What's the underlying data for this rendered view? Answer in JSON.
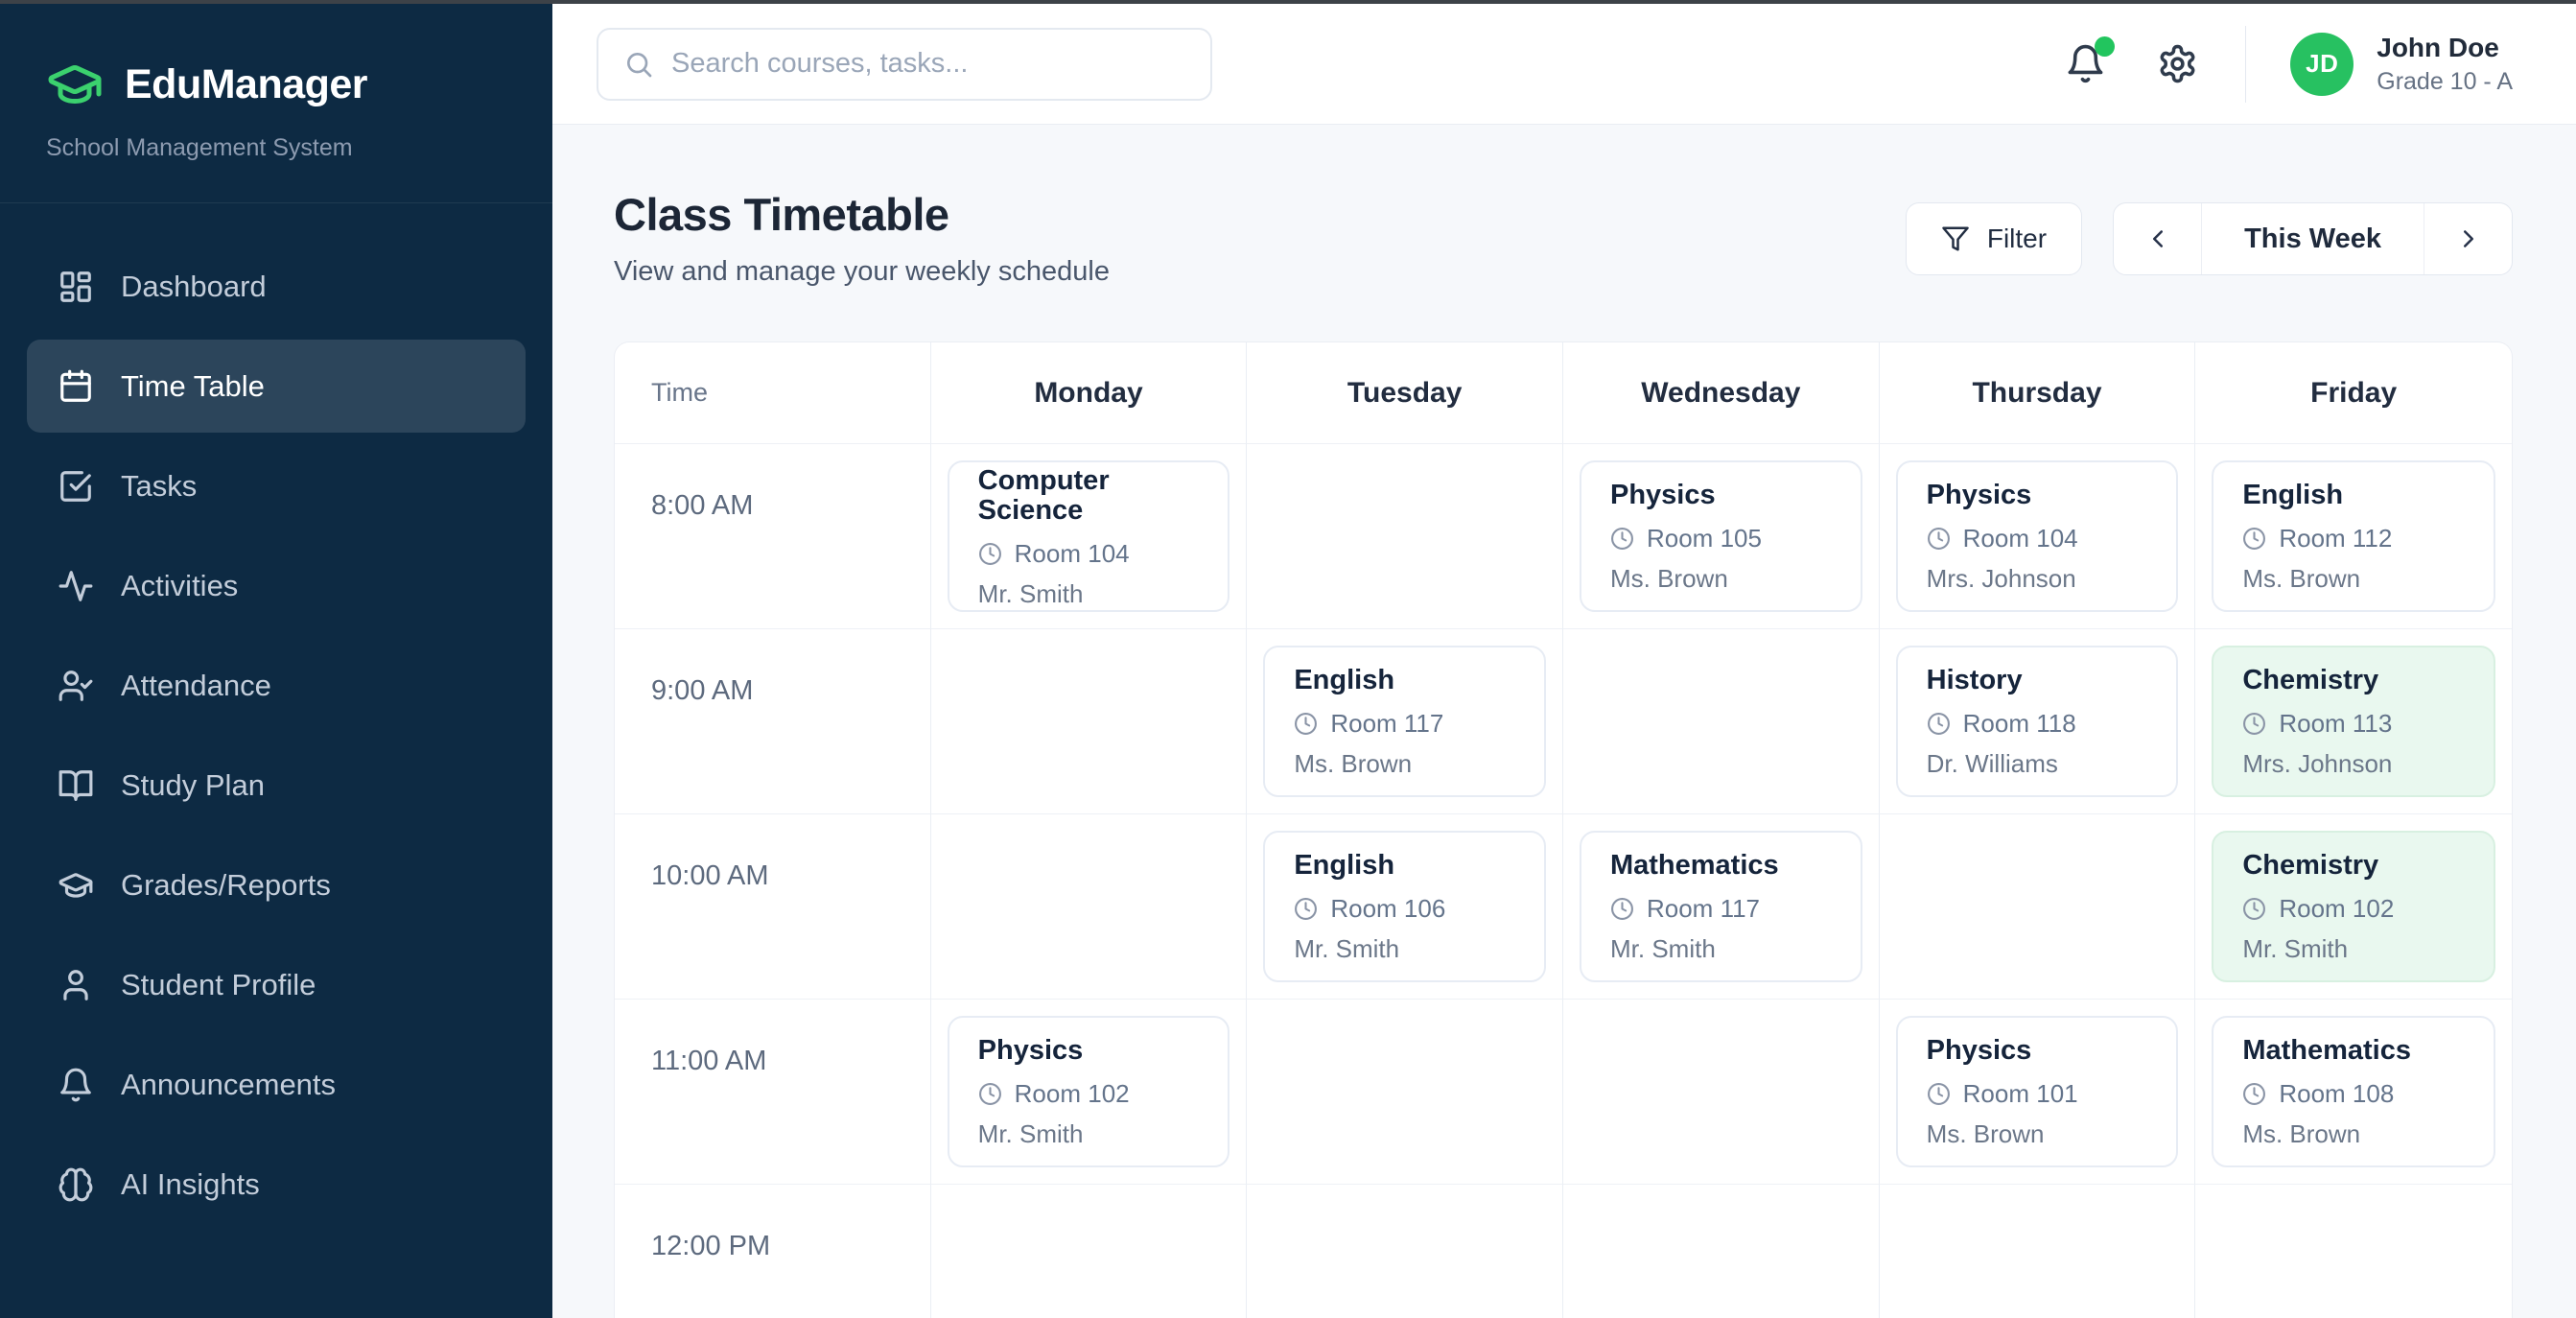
{
  "sidebar": {
    "logo_title": "EduManager",
    "logo_subtitle": "School Management System",
    "logo_icon": "graduation-cap-icon",
    "items": [
      {
        "label": "Dashboard",
        "icon": "dashboard-icon",
        "active": false
      },
      {
        "label": "Time Table",
        "icon": "calendar-icon",
        "active": true
      },
      {
        "label": "Tasks",
        "icon": "tasks-icon",
        "active": false
      },
      {
        "label": "Activities",
        "icon": "activity-icon",
        "active": false
      },
      {
        "label": "Attendance",
        "icon": "user-check-icon",
        "active": false
      },
      {
        "label": "Study Plan",
        "icon": "book-open-icon",
        "active": false
      },
      {
        "label": "Grades/Reports",
        "icon": "graduation-cap-icon",
        "active": false
      },
      {
        "label": "Student Profile",
        "icon": "user-icon",
        "active": false
      },
      {
        "label": "Announcements",
        "icon": "bell-icon",
        "active": false
      },
      {
        "label": "AI Insights",
        "icon": "brain-icon",
        "active": false
      }
    ]
  },
  "topbar": {
    "search_placeholder": "Search courses, tasks...",
    "search_value": "",
    "has_notification_dot": true,
    "user": {
      "initials": "JD",
      "name": "John Doe",
      "grade": "Grade 10 - A"
    }
  },
  "page": {
    "title": "Class Timetable",
    "subtitle": "View and manage your weekly schedule",
    "filter_label": "Filter",
    "week_label": "This Week"
  },
  "timetable": {
    "columns": [
      "Time",
      "Monday",
      "Tuesday",
      "Wednesday",
      "Thursday",
      "Friday"
    ],
    "rows": [
      {
        "time": "8:00 AM",
        "cells": [
          {
            "subject": "Computer Science",
            "room": "Room 104",
            "teacher": "Mr. Smith",
            "highlighted": false
          },
          null,
          {
            "subject": "Physics",
            "room": "Room 105",
            "teacher": "Ms. Brown",
            "highlighted": false
          },
          {
            "subject": "Physics",
            "room": "Room 104",
            "teacher": "Mrs. Johnson",
            "highlighted": false
          },
          {
            "subject": "English",
            "room": "Room 112",
            "teacher": "Ms. Brown",
            "highlighted": false
          }
        ]
      },
      {
        "time": "9:00 AM",
        "cells": [
          null,
          {
            "subject": "English",
            "room": "Room 117",
            "teacher": "Ms. Brown",
            "highlighted": false
          },
          null,
          {
            "subject": "History",
            "room": "Room 118",
            "teacher": "Dr. Williams",
            "highlighted": false
          },
          {
            "subject": "Chemistry",
            "room": "Room 113",
            "teacher": "Mrs. Johnson",
            "highlighted": true
          }
        ]
      },
      {
        "time": "10:00 AM",
        "cells": [
          null,
          {
            "subject": "English",
            "room": "Room 106",
            "teacher": "Mr. Smith",
            "highlighted": false
          },
          {
            "subject": "Mathematics",
            "room": "Room 117",
            "teacher": "Mr. Smith",
            "highlighted": false
          },
          null,
          {
            "subject": "Chemistry",
            "room": "Room 102",
            "teacher": "Mr. Smith",
            "highlighted": true
          }
        ]
      },
      {
        "time": "11:00 AM",
        "cells": [
          {
            "subject": "Physics",
            "room": "Room 102",
            "teacher": "Mr. Smith",
            "highlighted": false
          },
          null,
          null,
          {
            "subject": "Physics",
            "room": "Room 101",
            "teacher": "Ms. Brown",
            "highlighted": false
          },
          {
            "subject": "Mathematics",
            "room": "Room 108",
            "teacher": "Ms. Brown",
            "highlighted": false
          }
        ]
      },
      {
        "time": "12:00 PM",
        "cells": [
          null,
          null,
          null,
          null,
          null
        ]
      }
    ]
  },
  "colors": {
    "accent_green": "#22c55e",
    "avatar_green": "#27c161",
    "logo_green": "#3bd16e",
    "sidebar_bg": "#0d2a43",
    "highlight_card_bg": "#e9f8ef",
    "highlight_card_border": "#d8f0e1"
  }
}
